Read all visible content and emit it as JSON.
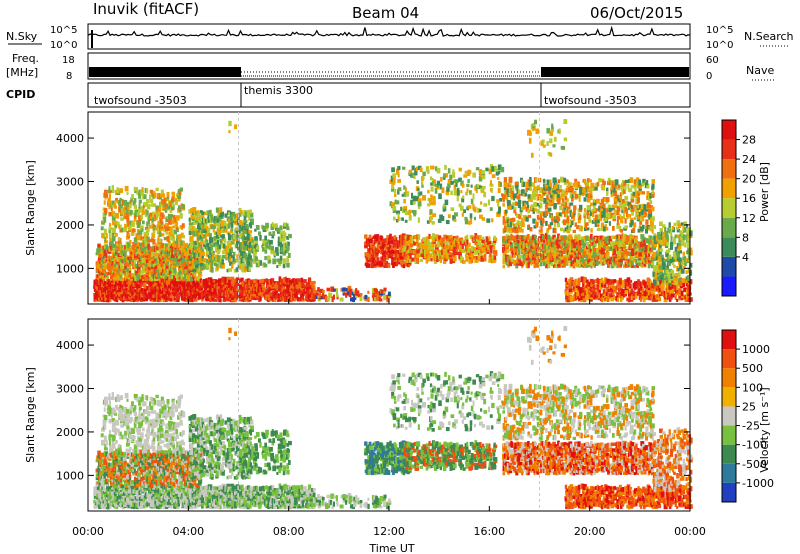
{
  "header": {
    "station": "Inuvik (fitACF)",
    "beam": "Beam 04",
    "date": "06/Oct/2015"
  },
  "strips": {
    "nsky_label": "N.Sky",
    "nsearch_label": "N.Search",
    "nsky_ticks": [
      "10^5",
      "10^0"
    ],
    "freq_label_1": "Freq.",
    "freq_label_2": "[MHz]",
    "freq_ticks": [
      "18",
      "8"
    ],
    "nave_label": "Nave",
    "nave_ticks": [
      "60",
      "0"
    ],
    "cpid_label": "CPID",
    "cpid_segments": [
      "twofsound -3503",
      "themis 3300",
      "twofsound -3503"
    ]
  },
  "chart_data": [
    {
      "type": "heatmap",
      "name": "power",
      "ylabel": "Slant Range [km]",
      "colorbar_label": "Power [dB]",
      "colorbar_ticks": [
        "28",
        "24",
        "20",
        "16",
        "12",
        "8",
        "4"
      ],
      "colors": [
        "#1a1aff",
        "#1f4aa8",
        "#3d8a5a",
        "#6aaa4a",
        "#b6cc30",
        "#f0a000",
        "#f07010",
        "#e83018",
        "#e01010"
      ],
      "xlabel": "Time UT",
      "x_ticks": [
        "00:00",
        "04:00",
        "08:00",
        "12:00",
        "16:00",
        "20:00",
        "00:00"
      ],
      "y_ticks": [
        "1000",
        "2000",
        "3000",
        "4000"
      ],
      "ylim": [
        180,
        4600
      ],
      "xlim_hours": [
        0,
        24
      ]
    },
    {
      "type": "heatmap",
      "name": "velocity",
      "ylabel": "Slant Range [km]",
      "colorbar_label": "Velocity [m s⁻¹]",
      "colorbar_ticks": [
        "1000",
        "500",
        "100",
        "25",
        "-25",
        "-100",
        "-500",
        "-1000"
      ],
      "colors": [
        "#2040c0",
        "#2f7a9a",
        "#3c8a50",
        "#78c040",
        "#c8c8c0",
        "#f0b000",
        "#f08000",
        "#f05010",
        "#e01010"
      ],
      "xlabel": "Time UT",
      "x_ticks": [
        "00:00",
        "04:00",
        "08:00",
        "12:00",
        "16:00",
        "20:00",
        "00:00"
      ],
      "y_ticks": [
        "1000",
        "2000",
        "3000",
        "4000"
      ],
      "ylim": [
        180,
        4600
      ],
      "xlim_hours": [
        0,
        24
      ]
    }
  ]
}
